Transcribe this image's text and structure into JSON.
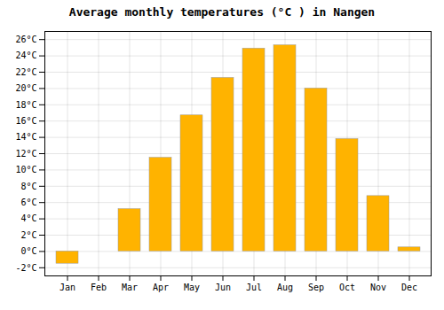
{
  "chart_data": {
    "type": "bar",
    "title": "Average monthly temperatures (°C ) in Nangen",
    "categories": [
      "Jan",
      "Feb",
      "Mar",
      "Apr",
      "May",
      "Jun",
      "Jul",
      "Aug",
      "Sep",
      "Oct",
      "Nov",
      "Dec"
    ],
    "values": [
      -1.5,
      0.0,
      5.2,
      11.5,
      16.7,
      21.3,
      24.9,
      25.3,
      20.0,
      13.8,
      6.8,
      0.5
    ],
    "color": "#FFB300",
    "ylim": [
      -3,
      27
    ],
    "yticks": [
      {
        "value": -2,
        "label": "-2°C"
      },
      {
        "value": 0,
        "label": "0°C"
      },
      {
        "value": 2,
        "label": "2°C"
      },
      {
        "value": 4,
        "label": "4°C"
      },
      {
        "value": 6,
        "label": "6°C"
      },
      {
        "value": 8,
        "label": "8°C"
      },
      {
        "value": 10,
        "label": "10°C"
      },
      {
        "value": 12,
        "label": "12°C"
      },
      {
        "value": 14,
        "label": "14°C"
      },
      {
        "value": 16,
        "label": "16°C"
      },
      {
        "value": 18,
        "label": "18°C"
      },
      {
        "value": 20,
        "label": "20°C"
      },
      {
        "value": 22,
        "label": "22°C"
      },
      {
        "value": 24,
        "label": "24°C"
      },
      {
        "value": 26,
        "label": "26°C"
      }
    ],
    "grid": true
  }
}
